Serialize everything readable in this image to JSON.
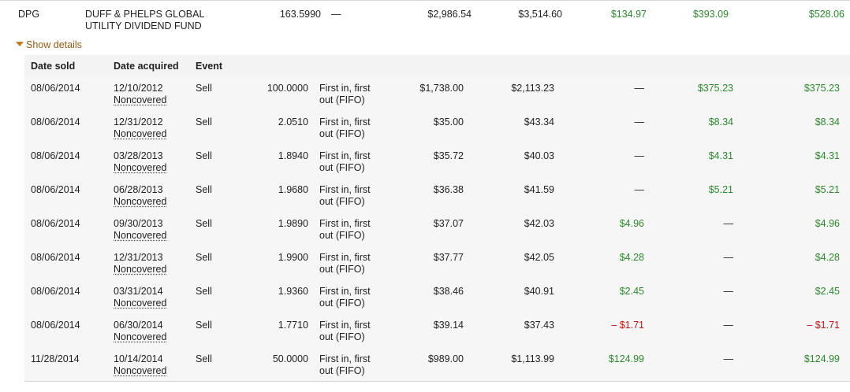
{
  "position": {
    "symbol": "DPG",
    "name_line1": "DUFF & PHELPS GLOBAL",
    "name_line2": "UTILITY DIVIDEND FUND",
    "quantity": "163.5990",
    "method": "—",
    "proceeds": "$2,986.54",
    "cost_basis": "$3,514.60",
    "short_term": "$134.97",
    "long_term": "$393.09",
    "total": "$528.06"
  },
  "toggle": {
    "label": "Show details"
  },
  "colors": {
    "gain": "#2b8a2b",
    "loss": "#d01010",
    "link": "#9b5a12"
  },
  "headers": {
    "date_sold": "Date sold",
    "date_acquired": "Date acquired",
    "event": "Event"
  },
  "lots": [
    {
      "sold": "08/06/2014",
      "acquired": "12/10/2012",
      "coverage": "Noncovered",
      "event": "Sell",
      "qty": "100.0000",
      "method1": "First in, first",
      "method2": "out (FIFO)",
      "proceeds": "$1,738.00",
      "cost": "$2,113.23",
      "st": "—",
      "lt": "$375.23",
      "total": "$375.23",
      "st_class": "",
      "lt_class": "green",
      "total_class": "green"
    },
    {
      "sold": "08/06/2014",
      "acquired": "12/31/2012",
      "coverage": "Noncovered",
      "event": "Sell",
      "qty": "2.0510",
      "method1": "First in, first",
      "method2": "out (FIFO)",
      "proceeds": "$35.00",
      "cost": "$43.34",
      "st": "—",
      "lt": "$8.34",
      "total": "$8.34",
      "st_class": "",
      "lt_class": "green",
      "total_class": "green"
    },
    {
      "sold": "08/06/2014",
      "acquired": "03/28/2013",
      "coverage": "Noncovered",
      "event": "Sell",
      "qty": "1.8940",
      "method1": "First in, first",
      "method2": "out (FIFO)",
      "proceeds": "$35.72",
      "cost": "$40.03",
      "st": "—",
      "lt": "$4.31",
      "total": "$4.31",
      "st_class": "",
      "lt_class": "green",
      "total_class": "green"
    },
    {
      "sold": "08/06/2014",
      "acquired": "06/28/2013",
      "coverage": "Noncovered",
      "event": "Sell",
      "qty": "1.9680",
      "method1": "First in, first",
      "method2": "out (FIFO)",
      "proceeds": "$36.38",
      "cost": "$41.59",
      "st": "—",
      "lt": "$5.21",
      "total": "$5.21",
      "st_class": "",
      "lt_class": "green",
      "total_class": "green"
    },
    {
      "sold": "08/06/2014",
      "acquired": "09/30/2013",
      "coverage": "Noncovered",
      "event": "Sell",
      "qty": "1.9890",
      "method1": "First in, first",
      "method2": "out (FIFO)",
      "proceeds": "$37.07",
      "cost": "$42.03",
      "st": "$4.96",
      "lt": "—",
      "total": "$4.96",
      "st_class": "green",
      "lt_class": "",
      "total_class": "green"
    },
    {
      "sold": "08/06/2014",
      "acquired": "12/31/2013",
      "coverage": "Noncovered",
      "event": "Sell",
      "qty": "1.9900",
      "method1": "First in, first",
      "method2": "out (FIFO)",
      "proceeds": "$37.77",
      "cost": "$42.05",
      "st": "$4.28",
      "lt": "—",
      "total": "$4.28",
      "st_class": "green",
      "lt_class": "",
      "total_class": "green"
    },
    {
      "sold": "08/06/2014",
      "acquired": "03/31/2014",
      "coverage": "Noncovered",
      "event": "Sell",
      "qty": "1.9360",
      "method1": "First in, first",
      "method2": "out (FIFO)",
      "proceeds": "$38.46",
      "cost": "$40.91",
      "st": "$2.45",
      "lt": "—",
      "total": "$2.45",
      "st_class": "green",
      "lt_class": "",
      "total_class": "green"
    },
    {
      "sold": "08/06/2014",
      "acquired": "06/30/2014",
      "coverage": "Noncovered",
      "event": "Sell",
      "qty": "1.7710",
      "method1": "First in, first",
      "method2": "out (FIFO)",
      "proceeds": "$39.14",
      "cost": "$37.43",
      "st": "– $1.71",
      "lt": "—",
      "total": "– $1.71",
      "st_class": "red",
      "lt_class": "",
      "total_class": "red"
    },
    {
      "sold": "11/28/2014",
      "acquired": "10/14/2014",
      "coverage": "Noncovered",
      "event": "Sell",
      "qty": "50.0000",
      "method1": "First in, first",
      "method2": "out (FIFO)",
      "proceeds": "$989.00",
      "cost": "$1,113.99",
      "st": "$124.99",
      "lt": "—",
      "total": "$124.99",
      "st_class": "green",
      "lt_class": "",
      "total_class": "green"
    }
  ]
}
